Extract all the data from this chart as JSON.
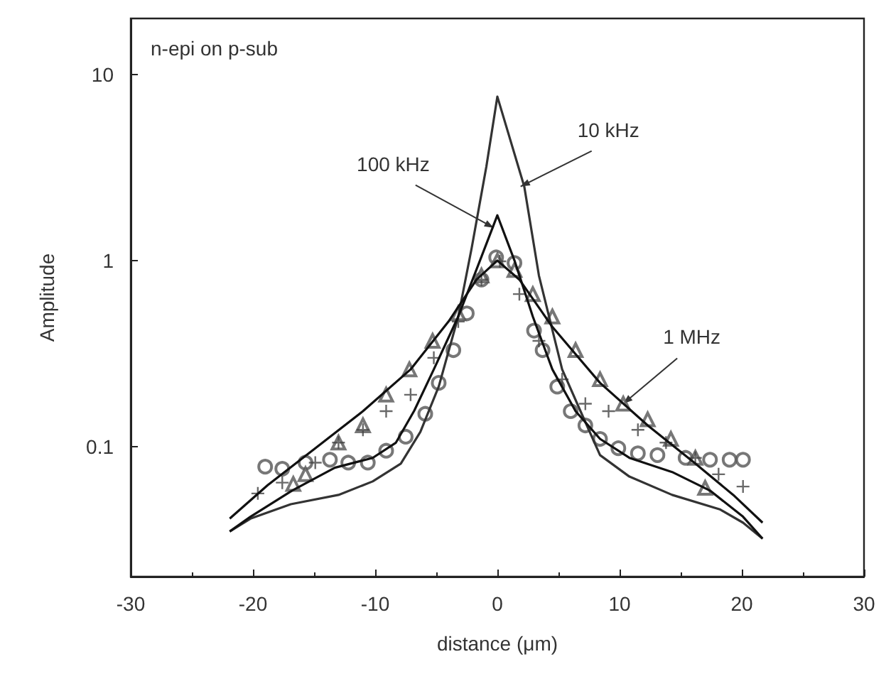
{
  "chart_data": {
    "type": "line",
    "title": "n-epi on p-sub",
    "xlabel": "distance (μm)",
    "ylabel": "Amplitude",
    "log": "y",
    "grid": false,
    "xlim": [
      -30,
      30
    ],
    "xticks": [
      -30,
      -20,
      -10,
      0,
      10,
      20,
      30
    ],
    "ylim": [
      0.02,
      20
    ],
    "yticks": [
      0.1,
      1,
      10
    ],
    "series": [
      {
        "marker": "none",
        "line_style": "solid",
        "color": "#333333",
        "x": [
          -21.9,
          -20.2,
          -16.9,
          -13,
          -10.2,
          -7.9,
          -6.3,
          -4.8,
          -3.2,
          -2.1,
          -0.9,
          0,
          2.2,
          3.4,
          5.3,
          6.9,
          8.4,
          10.8,
          14.3,
          18.2,
          20.1,
          21.7
        ],
        "values": [
          0.035,
          0.041,
          0.049,
          0.055,
          0.065,
          0.081,
          0.12,
          0.21,
          0.5,
          1.17,
          3.2,
          7.6,
          2.5,
          0.83,
          0.26,
          0.15,
          0.09,
          0.069,
          0.055,
          0.046,
          0.039,
          0.032
        ]
      },
      {
        "marker": "none",
        "line_style": "solid",
        "color": "#111111",
        "x": [
          -21.9,
          -20.2,
          -16.8,
          -13.3,
          -10.2,
          -8.3,
          -6.8,
          -5.2,
          -3.2,
          -1.3,
          0,
          1.4,
          2.9,
          4.5,
          6.4,
          8.4,
          10.8,
          14.3,
          17.4,
          20.1,
          21.7
        ],
        "values": [
          0.035,
          0.042,
          0.058,
          0.077,
          0.087,
          0.105,
          0.156,
          0.26,
          0.5,
          1.05,
          1.75,
          1.0,
          0.5,
          0.26,
          0.155,
          0.11,
          0.087,
          0.073,
          0.058,
          0.042,
          0.032
        ]
      },
      {
        "marker": "none",
        "line_style": "solid",
        "color": "#111111",
        "x": [
          -21.9,
          -18.8,
          -14.9,
          -11,
          -7.1,
          -4,
          -1.7,
          0,
          1.8,
          4.5,
          8.4,
          12.3,
          16.2,
          19.3,
          21.7
        ],
        "values": [
          0.041,
          0.062,
          0.098,
          0.155,
          0.26,
          0.47,
          0.79,
          1.0,
          0.79,
          0.44,
          0.22,
          0.13,
          0.081,
          0.055,
          0.039
        ]
      },
      {
        "type": "scatter",
        "marker": "circle",
        "color": "#555555",
        "x": [
          -19,
          -17.6,
          -15.7,
          -13.7,
          -12.2,
          -10.6,
          -9.1,
          -7.5,
          -5.9,
          -4.8,
          -3.6,
          -2.5,
          -1.3,
          -0.1,
          1.4,
          3,
          3.7,
          4.9,
          6,
          7.2,
          8.4,
          9.9,
          11.5,
          13.1,
          15.4,
          17.4,
          19,
          20.1
        ],
        "values": [
          0.078,
          0.076,
          0.082,
          0.085,
          0.082,
          0.082,
          0.095,
          0.113,
          0.15,
          0.22,
          0.33,
          0.52,
          0.79,
          1.04,
          0.97,
          0.42,
          0.33,
          0.21,
          0.155,
          0.13,
          0.11,
          0.098,
          0.092,
          0.09,
          0.087,
          0.085,
          0.085,
          0.085
        ]
      },
      {
        "type": "scatter",
        "marker": "triangle",
        "color": "#555555",
        "x": [
          -16.7,
          -15.7,
          -13,
          -11,
          -9.1,
          -7.2,
          -5.3,
          -3.2,
          -1.3,
          0,
          1.4,
          2.9,
          4.5,
          6.4,
          8.4,
          10.3,
          12.3,
          14.2,
          16.2,
          17
        ],
        "values": [
          0.063,
          0.071,
          0.105,
          0.13,
          0.19,
          0.26,
          0.37,
          0.52,
          0.83,
          1.0,
          0.89,
          0.66,
          0.5,
          0.33,
          0.23,
          0.17,
          0.14,
          0.11,
          0.087,
          0.06
        ]
      },
      {
        "type": "scatter",
        "marker": "cross",
        "color": "#444444",
        "x": [
          -19.6,
          -17.6,
          -14.9,
          -13,
          -11,
          -9.1,
          -7.1,
          -5.2,
          -3.2,
          -1.3,
          0.2,
          1.8,
          3.4,
          5.3,
          7.2,
          9.1,
          11.5,
          13.8,
          16.2,
          18.1,
          20.1
        ],
        "values": [
          0.056,
          0.064,
          0.082,
          0.105,
          0.123,
          0.155,
          0.19,
          0.3,
          0.47,
          0.79,
          0.99,
          0.66,
          0.37,
          0.23,
          0.17,
          0.155,
          0.123,
          0.105,
          0.087,
          0.071,
          0.061
        ]
      }
    ],
    "annotations": [
      {
        "text": "10 kHz",
        "x": 1.9,
        "y": 2.5
      },
      {
        "text": "100 kHz",
        "x": -0.3,
        "y": 1.5
      },
      {
        "text": "1 MHz",
        "x": 10.3,
        "y": 0.17
      }
    ]
  }
}
